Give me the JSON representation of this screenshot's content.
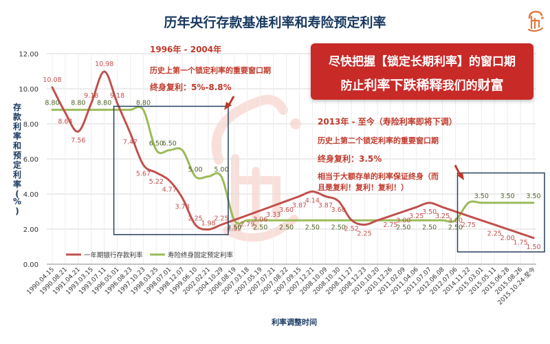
{
  "page": {
    "background": "#ffffff"
  },
  "banner": {
    "line1": "尽快把握【锁定长期利率】的窗口期",
    "line2_pre": "防止",
    "line2_big1": "利率下跌稀释",
    "line2_mid": "我们的",
    "line2_big2": "财富",
    "color": "#c82a28"
  },
  "annotations": {
    "first": {
      "period": "1996年 - 2004年",
      "desc": "历史上第一个锁定利率的重要窗口期",
      "rate": "终身复利：5%-8.8%"
    },
    "second": {
      "period": "2013年 - 至今（寿险利率即将下调）",
      "desc": "历史上第二个锁定利率的重要窗口期",
      "rate": "终身复利：3.5%",
      "note1": "相当于大额存单的利率保证终身（而",
      "note2": "且是复利！复利！复利！）"
    }
  },
  "chart_data": {
    "type": "line",
    "title": "历年央行存款基准利率和寿险预定利率",
    "xlabel": "利率调整时间",
    "ylabel": "存款利率和预定利率（%）",
    "ylim": [
      0,
      12
    ],
    "yticks": [
      "0.00",
      "2.00",
      "4.00",
      "6.00",
      "8.00",
      "10.00",
      "12.00"
    ],
    "grid": true,
    "legend_position": "bottom-left",
    "categories": [
      "1990.04.15",
      "1990.08.21",
      "1991.04.21",
      "1993.03.15",
      "1993.07.11",
      "1996.05.01",
      "1996.08.23",
      "1997.10.23",
      "1998.03.25",
      "1998.07.01",
      "1998.12.07",
      "1999.06.10",
      "2002.02.21",
      "2004.10.29",
      "2006.08.19",
      "2007.03.18",
      "2007.05.19",
      "2007.07.21",
      "2007.08.22",
      "2007.09.15",
      "2007.12.21",
      "2008.10.09",
      "2008.10.30",
      "2008.11.27",
      "2008.12.23",
      "2010.10.20",
      "2010.12.26",
      "2011.02.09",
      "2011.04.06",
      "2011.07.07",
      "2012.06.08",
      "2012.07.06",
      "2014.11.22",
      "2015.03.01",
      "2015.05.11",
      "2015.06.28",
      "2015.08.26",
      "2015.10.24-至今"
    ],
    "series": [
      {
        "name": "一年期银行存款利率",
        "color": "#c0504d",
        "values": [
          10.08,
          8.64,
          7.56,
          9.18,
          10.98,
          9.18,
          7.47,
          5.67,
          5.22,
          4.77,
          3.78,
          2.25,
          1.98,
          2.25,
          2.52,
          2.79,
          3.06,
          3.33,
          3.6,
          3.87,
          4.14,
          3.87,
          3.6,
          2.52,
          2.25,
          2.5,
          2.75,
          3.0,
          3.25,
          3.5,
          3.25,
          3.0,
          2.75,
          2.5,
          2.25,
          2.0,
          1.75,
          1.5
        ],
        "labels": [
          "10.08",
          "8.64",
          "7.56",
          "9.18",
          "10.98",
          "9.18",
          "7.47",
          "5.67",
          "5.22",
          "4.77",
          "3.78",
          "2.25",
          "1.98",
          "2.25",
          "2.52",
          "2.79",
          "3.06",
          "3.33",
          "3.60",
          "3.87",
          "4.14",
          "3.87",
          "3.60",
          "2.52",
          "2.25",
          "",
          "2.75",
          "3.00",
          "3.25",
          "3.50",
          "3.25",
          "3.00",
          "2.75",
          "",
          "2.25",
          "2.00",
          "1.75",
          "1.50"
        ]
      },
      {
        "name": "寿险终身固定预定利率",
        "color": "#9bbb59",
        "values": [
          8.8,
          8.8,
          8.8,
          8.8,
          8.8,
          8.8,
          8.8,
          8.8,
          6.5,
          6.5,
          6.5,
          5.0,
          5.0,
          5.0,
          2.5,
          2.5,
          2.5,
          2.5,
          2.5,
          2.5,
          2.5,
          2.5,
          2.5,
          2.5,
          2.5,
          2.5,
          2.5,
          2.5,
          2.5,
          2.5,
          2.5,
          2.5,
          3.5,
          3.5,
          3.5,
          3.5,
          3.5,
          3.5
        ],
        "labels": [
          "8.80",
          "",
          "8.80",
          "",
          "8.80",
          "",
          "",
          "8.80",
          "6.50",
          "6.50",
          "",
          "5.00",
          "",
          "5.00",
          "2.50",
          "",
          "2.50",
          "",
          "2.50",
          "",
          "2.50",
          "",
          "2.50",
          "",
          "",
          "",
          "",
          "2.50",
          "",
          "2.50",
          "",
          "2.50",
          "",
          "3.50",
          "",
          "3.50",
          "",
          "3.50"
        ]
      }
    ]
  }
}
